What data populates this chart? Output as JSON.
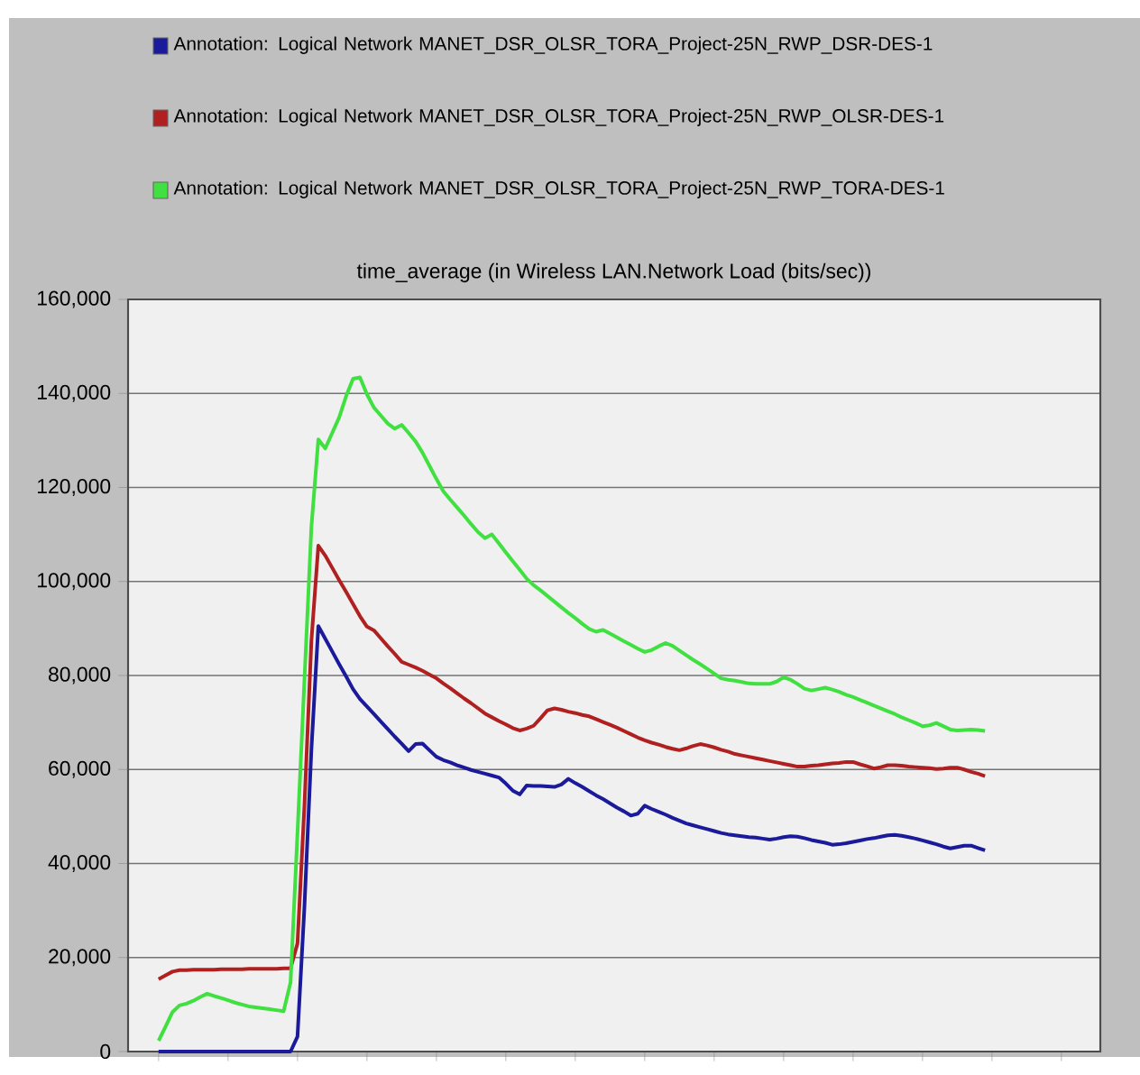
{
  "chart_data": {
    "type": "line",
    "title": "time_average (in Wireless LAN.Network Load (bits/sec))",
    "categories": [
      null,
      null,
      null,
      null,
      null,
      null,
      null,
      null,
      null,
      null,
      null,
      null,
      null,
      null,
      null,
      null,
      null,
      null,
      null,
      null,
      null,
      null,
      null,
      null,
      null,
      null,
      null,
      null,
      null,
      null,
      null,
      null,
      null,
      null,
      null,
      null,
      null,
      null,
      null,
      null,
      null,
      null,
      null,
      null,
      null,
      null,
      null,
      null,
      null,
      null,
      null,
      null,
      null,
      null,
      null,
      null,
      null,
      null,
      null,
      null,
      null,
      null,
      null,
      null,
      null,
      null,
      null,
      null,
      null,
      null,
      null,
      null,
      null,
      null,
      null,
      null,
      null,
      null,
      null,
      null,
      null,
      null,
      null,
      null,
      null,
      null,
      null,
      null,
      null,
      null,
      null,
      null,
      null,
      null,
      null,
      null,
      null,
      null,
      null,
      null,
      null,
      null,
      null,
      null,
      null,
      null,
      null,
      null,
      null,
      null,
      null,
      null,
      null,
      null,
      null,
      null,
      null,
      null,
      null,
      null
    ],
    "ylim": [
      0,
      160000
    ],
    "yticks": [
      0,
      {
        "value": 20000,
        "label": "20,000"
      },
      {
        "value": 40000,
        "label": "40,000"
      },
      {
        "value": 60000,
        "label": "60,000"
      },
      {
        "value": 80000,
        "label": "80,000"
      },
      {
        "value": 100000,
        "label": "100,000"
      },
      {
        "value": 120000,
        "label": "120,000"
      },
      {
        "value": 140000,
        "label": "140,000"
      },
      {
        "value": 160000,
        "label": "160,000"
      }
    ],
    "tick_labels": "y",
    "grid": "y",
    "legend": "top",
    "series": [
      {
        "name": "Annotation: Logical Network MANET_DSR_OLSR_TORA_Project-25N_RWP_DSR-DES-1",
        "color": "#1a1a9a",
        "values": [
          0,
          0,
          0,
          0,
          0,
          0,
          0,
          0,
          0,
          0,
          0,
          0,
          0,
          0,
          0,
          0,
          0,
          0,
          0,
          0,
          3200,
          30800,
          64200,
          90500,
          87800,
          85100,
          82400,
          79800,
          77100,
          75000,
          73400,
          71800,
          70200,
          68600,
          67000,
          65500,
          63900,
          65400,
          65500,
          64100,
          62700,
          62000,
          61500,
          60900,
          60400,
          59900,
          59500,
          59100,
          58700,
          58300,
          57000,
          55500,
          54700,
          56600,
          56500,
          56500,
          56400,
          56300,
          56800,
          58000,
          57100,
          56300,
          55400,
          54500,
          53700,
          52800,
          51900,
          51100,
          50200,
          50600,
          52300,
          51600,
          51000,
          50400,
          49700,
          49100,
          48500,
          48100,
          47700,
          47300,
          46900,
          46500,
          46200,
          46000,
          45800,
          45600,
          45500,
          45300,
          45100,
          45300,
          45600,
          45800,
          45700,
          45400,
          45000,
          44700,
          44400,
          44000,
          44100,
          44300,
          44600,
          44900,
          45200,
          45400,
          45700,
          46000,
          46100,
          45900,
          45600,
          45300,
          44900,
          44500,
          44100,
          43600,
          43200,
          43500,
          43800,
          43800,
          43300,
          42800
        ]
      },
      {
        "name": "Annotation: Logical Network MANET_DSR_OLSR_TORA_Project-25N_RWP_OLSR-DES-1",
        "color": "#b02020",
        "values": [
          15400,
          16200,
          17000,
          17300,
          17300,
          17400,
          17400,
          17400,
          17400,
          17500,
          17500,
          17500,
          17500,
          17600,
          17600,
          17600,
          17600,
          17600,
          17700,
          17700,
          23000,
          52300,
          87300,
          107600,
          105500,
          102900,
          100300,
          97800,
          95200,
          92600,
          90400,
          89600,
          87900,
          86200,
          84600,
          82900,
          82300,
          81700,
          81000,
          80200,
          79400,
          78300,
          77300,
          76200,
          75100,
          74100,
          73000,
          71900,
          71100,
          70300,
          69600,
          68800,
          68300,
          68700,
          69300,
          70900,
          72600,
          73000,
          72700,
          72300,
          72000,
          71600,
          71300,
          70700,
          70100,
          69500,
          68900,
          68200,
          67500,
          66800,
          66200,
          65700,
          65300,
          64800,
          64400,
          64100,
          64500,
          65000,
          65400,
          65100,
          64700,
          64200,
          63800,
          63300,
          63000,
          62700,
          62400,
          62100,
          61800,
          61500,
          61200,
          60900,
          60600,
          60600,
          60800,
          60900,
          61100,
          61300,
          61400,
          61600,
          61600,
          61100,
          60700,
          60200,
          60500,
          60900,
          60900,
          60800,
          60600,
          60500,
          60400,
          60300,
          60100,
          60200,
          60400,
          60400,
          60000,
          59500,
          59100,
          58600
        ]
      },
      {
        "name": "Annotation: Logical Network MANET_DSR_OLSR_TORA_Project-25N_RWP_TORA-DES-1",
        "color": "#40e040",
        "values": [
          2300,
          5300,
          8400,
          9800,
          10200,
          10800,
          11600,
          12300,
          11800,
          11400,
          10900,
          10400,
          10000,
          9600,
          9400,
          9200,
          9000,
          8800,
          8600,
          14700,
          46500,
          79000,
          111500,
          130200,
          128300,
          131600,
          134900,
          139400,
          143100,
          143400,
          139800,
          137000,
          135300,
          133600,
          132500,
          133300,
          131600,
          129800,
          127400,
          124600,
          121800,
          119200,
          117400,
          115700,
          114000,
          112200,
          110500,
          109200,
          110000,
          108100,
          106200,
          104300,
          102500,
          100600,
          99200,
          98100,
          96900,
          95700,
          94500,
          93300,
          92200,
          91000,
          89900,
          89300,
          89700,
          88900,
          88100,
          87300,
          86500,
          85700,
          85000,
          85400,
          86200,
          86900,
          86300,
          85300,
          84300,
          83300,
          82400,
          81400,
          80400,
          79400,
          79100,
          78900,
          78600,
          78300,
          78200,
          78200,
          78200,
          78700,
          79600,
          79100,
          78200,
          77200,
          76800,
          77100,
          77400,
          77000,
          76500,
          75900,
          75400,
          74800,
          74200,
          73600,
          73000,
          72400,
          71800,
          71100,
          70500,
          69900,
          69200,
          69400,
          69900,
          69200,
          68500,
          68300,
          68400,
          68500,
          68400,
          68200
        ]
      }
    ]
  }
}
